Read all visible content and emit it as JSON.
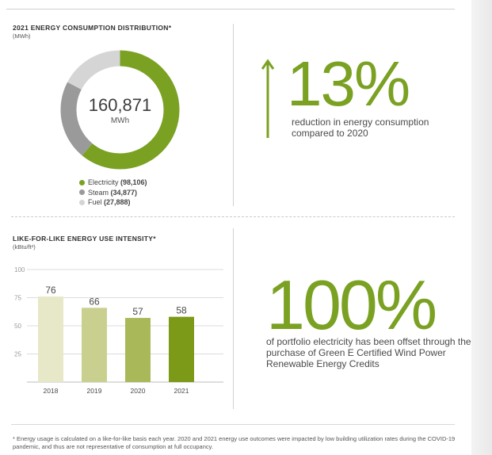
{
  "donut": {
    "title": "2021 ENERGY CONSUMPTION DISTRIBUTION*",
    "unit": "(MWh)",
    "center_value": "160,871",
    "center_unit": "MWh",
    "legend": [
      {
        "label": "Electricity",
        "value": "(98,106)",
        "color": "#7aa122"
      },
      {
        "label": "Steam",
        "value": "(34,877)",
        "color": "#9a9a9a"
      },
      {
        "label": "Fuel",
        "value": "(27,888)",
        "color": "#d5d5d5"
      }
    ]
  },
  "stat1": {
    "value": "13%",
    "description": "reduction in energy consumption compared to 2020",
    "color": "#7aa122"
  },
  "stat2": {
    "value": "100%",
    "description": "of portfolio electricity has been offset through the purchase of Green E Certified Wind Power Renewable Energy Credits",
    "color": "#7aa122"
  },
  "bar": {
    "title": "LIKE-FOR-LIKE ENERGY USE INTENSITY*",
    "unit": "(kBtu/ft²)"
  },
  "footnote": "* Energy usage is calculated on a like-for-like basis each year. 2020 and 2021 energy use outcomes were impacted by low building utilization rates during the COVID-19 pandemic, and thus are not representative of consumption at full occupancy.",
  "chart_data": [
    {
      "type": "pie",
      "title": "2021 ENERGY CONSUMPTION DISTRIBUTION*",
      "unit": "(MWh)",
      "total": 160871,
      "categories": [
        "Electricity",
        "Steam",
        "Fuel"
      ],
      "values": [
        98106,
        34877,
        27888
      ],
      "colors": [
        "#7aa122",
        "#9a9a9a",
        "#d5d5d5"
      ],
      "legend": "bottom"
    },
    {
      "type": "bar",
      "title": "LIKE-FOR-LIKE ENERGY USE INTENSITY*",
      "ylabel": "(kBtu/ft²)",
      "categories": [
        "2018",
        "2019",
        "2020",
        "2021"
      ],
      "values": [
        76,
        66,
        57,
        58
      ],
      "colors": [
        "#e6e8c8",
        "#c9d08f",
        "#a9b95a",
        "#7c9a18"
      ],
      "ylim": [
        0,
        100
      ],
      "yticks": [
        25,
        50,
        75,
        100
      ],
      "grid": true
    }
  ]
}
